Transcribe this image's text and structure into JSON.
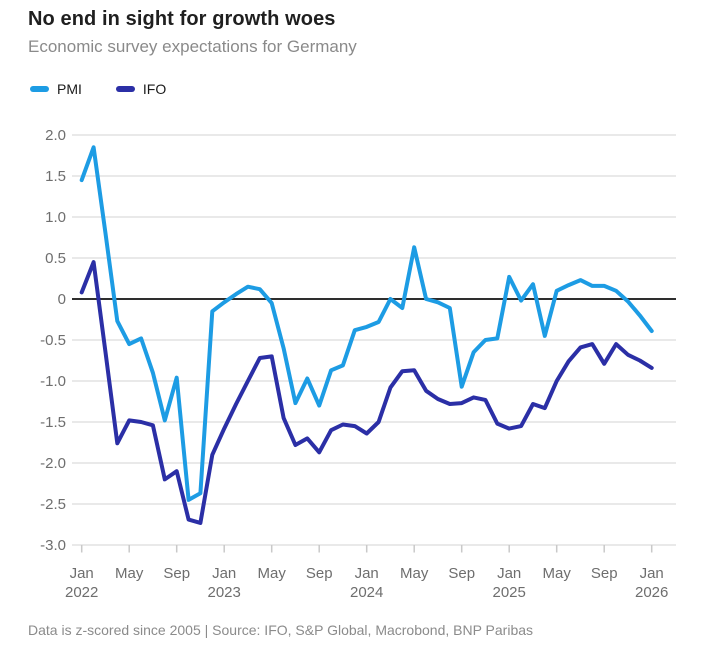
{
  "header": {
    "title": "No end in sight for growth woes",
    "subtitle": "Economic survey expectations for Germany"
  },
  "legend": {
    "position": "top-left",
    "items": [
      {
        "label": "PMI",
        "color": "#1d9ce4"
      },
      {
        "label": "IFO",
        "color": "#2b2fa6"
      }
    ]
  },
  "footer": {
    "note": "Data is z-scored since 2005  | Source: IFO, S&P Global, Macrobond, BNP Paribas"
  },
  "chart_data": {
    "type": "line",
    "title": "No end in sight for growth woes",
    "subtitle": "Economic survey expectations for Germany",
    "x_axis": {
      "start": "Jan 2022",
      "end": "Jan 2026",
      "frequency": "monthly",
      "n_points": 49,
      "ticks": [
        {
          "month_index": 0,
          "line1": "Jan",
          "line2": "2022"
        },
        {
          "month_index": 4,
          "line1": "May"
        },
        {
          "month_index": 8,
          "line1": "Sep"
        },
        {
          "month_index": 12,
          "line1": "Jan",
          "line2": "2023"
        },
        {
          "month_index": 16,
          "line1": "May"
        },
        {
          "month_index": 20,
          "line1": "Sep"
        },
        {
          "month_index": 24,
          "line1": "Jan",
          "line2": "2024"
        },
        {
          "month_index": 28,
          "line1": "May"
        },
        {
          "month_index": 32,
          "line1": "Sep"
        },
        {
          "month_index": 36,
          "line1": "Jan",
          "line2": "2025"
        },
        {
          "month_index": 40,
          "line1": "May"
        },
        {
          "month_index": 44,
          "line1": "Sep"
        },
        {
          "month_index": 48,
          "line1": "Jan",
          "line2": "2026"
        }
      ]
    },
    "y_axis": {
      "min": -3.0,
      "max": 2.0,
      "step": 0.5,
      "zero_line": true,
      "grid": true,
      "tick_labels": [
        "2.0",
        "1.5",
        "1.0",
        "0.5",
        "0",
        "-0.5",
        "-1.0",
        "-1.5",
        "-2.0",
        "-2.5",
        "-3.0"
      ],
      "tick_values": [
        2.0,
        1.5,
        1.0,
        0.5,
        0,
        -0.5,
        -1.0,
        -1.5,
        -2.0,
        -2.5,
        -3.0
      ]
    },
    "series": [
      {
        "name": "PMI",
        "color": "#1d9ce4",
        "values": [
          1.45,
          1.85,
          0.8,
          -0.27,
          -0.55,
          -0.48,
          -0.9,
          -1.48,
          -0.96,
          -2.45,
          -2.37,
          -0.15,
          -0.04,
          0.06,
          0.15,
          0.12,
          -0.05,
          -0.6,
          -1.27,
          -0.97,
          -1.3,
          -0.87,
          -0.81,
          -0.38,
          -0.34,
          -0.28,
          0.0,
          -0.11,
          0.63,
          0.0,
          -0.04,
          -0.11,
          -1.07,
          -0.65,
          -0.5,
          -0.48,
          0.27,
          -0.02,
          0.18,
          -0.45,
          0.1,
          0.17,
          0.23,
          0.16,
          0.16,
          0.1,
          -0.03,
          -0.2,
          -0.39
        ]
      },
      {
        "name": "IFO",
        "color": "#2b2fa6",
        "values": [
          0.08,
          0.45,
          -0.65,
          -1.76,
          -1.48,
          -1.5,
          -1.54,
          -2.2,
          -2.1,
          -2.69,
          -2.73,
          -1.9,
          -1.58,
          -1.28,
          -1.0,
          -0.72,
          -0.7,
          -1.45,
          -1.78,
          -1.7,
          -1.87,
          -1.6,
          -1.53,
          -1.55,
          -1.64,
          -1.5,
          -1.08,
          -0.88,
          -0.87,
          -1.12,
          -1.22,
          -1.28,
          -1.27,
          -1.2,
          -1.23,
          -1.52,
          -1.58,
          -1.55,
          -1.28,
          -1.33,
          -1.0,
          -0.76,
          -0.59,
          -0.55,
          -0.79,
          -0.55,
          -0.68,
          -0.75,
          -0.84
        ]
      }
    ],
    "source_note": "Data is z-scored since 2005  | Source: IFO, S&P Global, Macrobond, BNP Paribas"
  }
}
